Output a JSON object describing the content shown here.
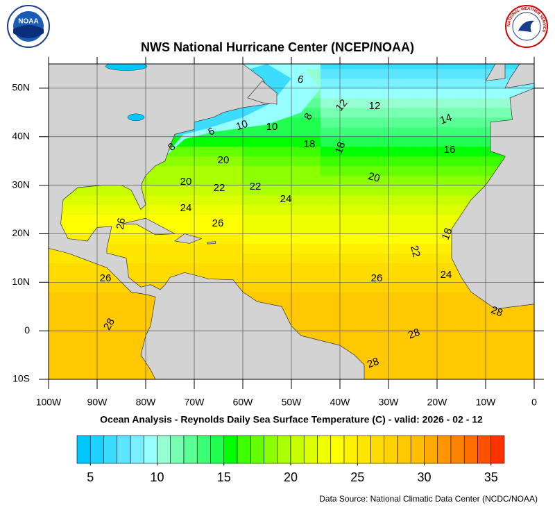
{
  "logos": {
    "left": "NOAA",
    "right": "NATIONAL WEATHER SERVICE"
  },
  "header": {
    "title": "NWS National Hurricane Center (NCEP/NOAA)"
  },
  "map": {
    "xlim": [
      -100,
      0
    ],
    "ylim": [
      -10,
      55
    ],
    "grid": true,
    "xticks": [
      {
        "value": -100,
        "label": "100W"
      },
      {
        "value": -90,
        "label": "90W"
      },
      {
        "value": -80,
        "label": "80W"
      },
      {
        "value": -70,
        "label": "70W"
      },
      {
        "value": -60,
        "label": "60W"
      },
      {
        "value": -50,
        "label": "50W"
      },
      {
        "value": -40,
        "label": "40W"
      },
      {
        "value": -30,
        "label": "30W"
      },
      {
        "value": -20,
        "label": "20W"
      },
      {
        "value": -10,
        "label": "10W"
      },
      0
    ],
    "yticks": [
      {
        "value": 50,
        "label": "50N"
      },
      {
        "value": 40,
        "label": "40N"
      },
      {
        "value": 30,
        "label": "30N"
      },
      {
        "value": 20,
        "label": "20N"
      },
      {
        "value": 10,
        "label": "10N"
      },
      0,
      {
        "value": -10,
        "label": "10S"
      }
    ],
    "contour_labels": [
      6,
      6,
      8,
      8,
      10,
      10,
      12,
      12,
      14,
      16,
      18,
      18,
      18,
      20,
      20,
      20,
      22,
      22,
      22,
      24,
      24,
      24,
      26,
      26,
      26,
      26,
      28,
      28,
      28,
      28
    ]
  },
  "caption": "Ocean Analysis - Reynolds Daily Sea Surface Temperature (C) - valid: 2026 - 02 - 12",
  "colorbar": {
    "range": [
      4,
      36
    ],
    "ticks": [
      5,
      10,
      15,
      20,
      25,
      30,
      35
    ],
    "colors": [
      "#00c8ff",
      "#1ed2ff",
      "#3cdcff",
      "#5ae6ff",
      "#78f0ff",
      "#96ffff",
      "#96ffd2",
      "#78ffb4",
      "#5aff96",
      "#3cff78",
      "#1eff50",
      "#00ff00",
      "#3cff00",
      "#64ff00",
      "#8cff00",
      "#aaff00",
      "#c8ff00",
      "#dcff00",
      "#f0ff00",
      "#ffff00",
      "#fff000",
      "#ffe600",
      "#ffdc00",
      "#ffd200",
      "#ffc800",
      "#ffbe00",
      "#ffaa00",
      "#ff9600",
      "#ff8200",
      "#ff6e00",
      "#ff5000",
      "#ff3200"
    ]
  },
  "source": "Data Source: National Climatic Data Center (NCDC/NOAA)"
}
